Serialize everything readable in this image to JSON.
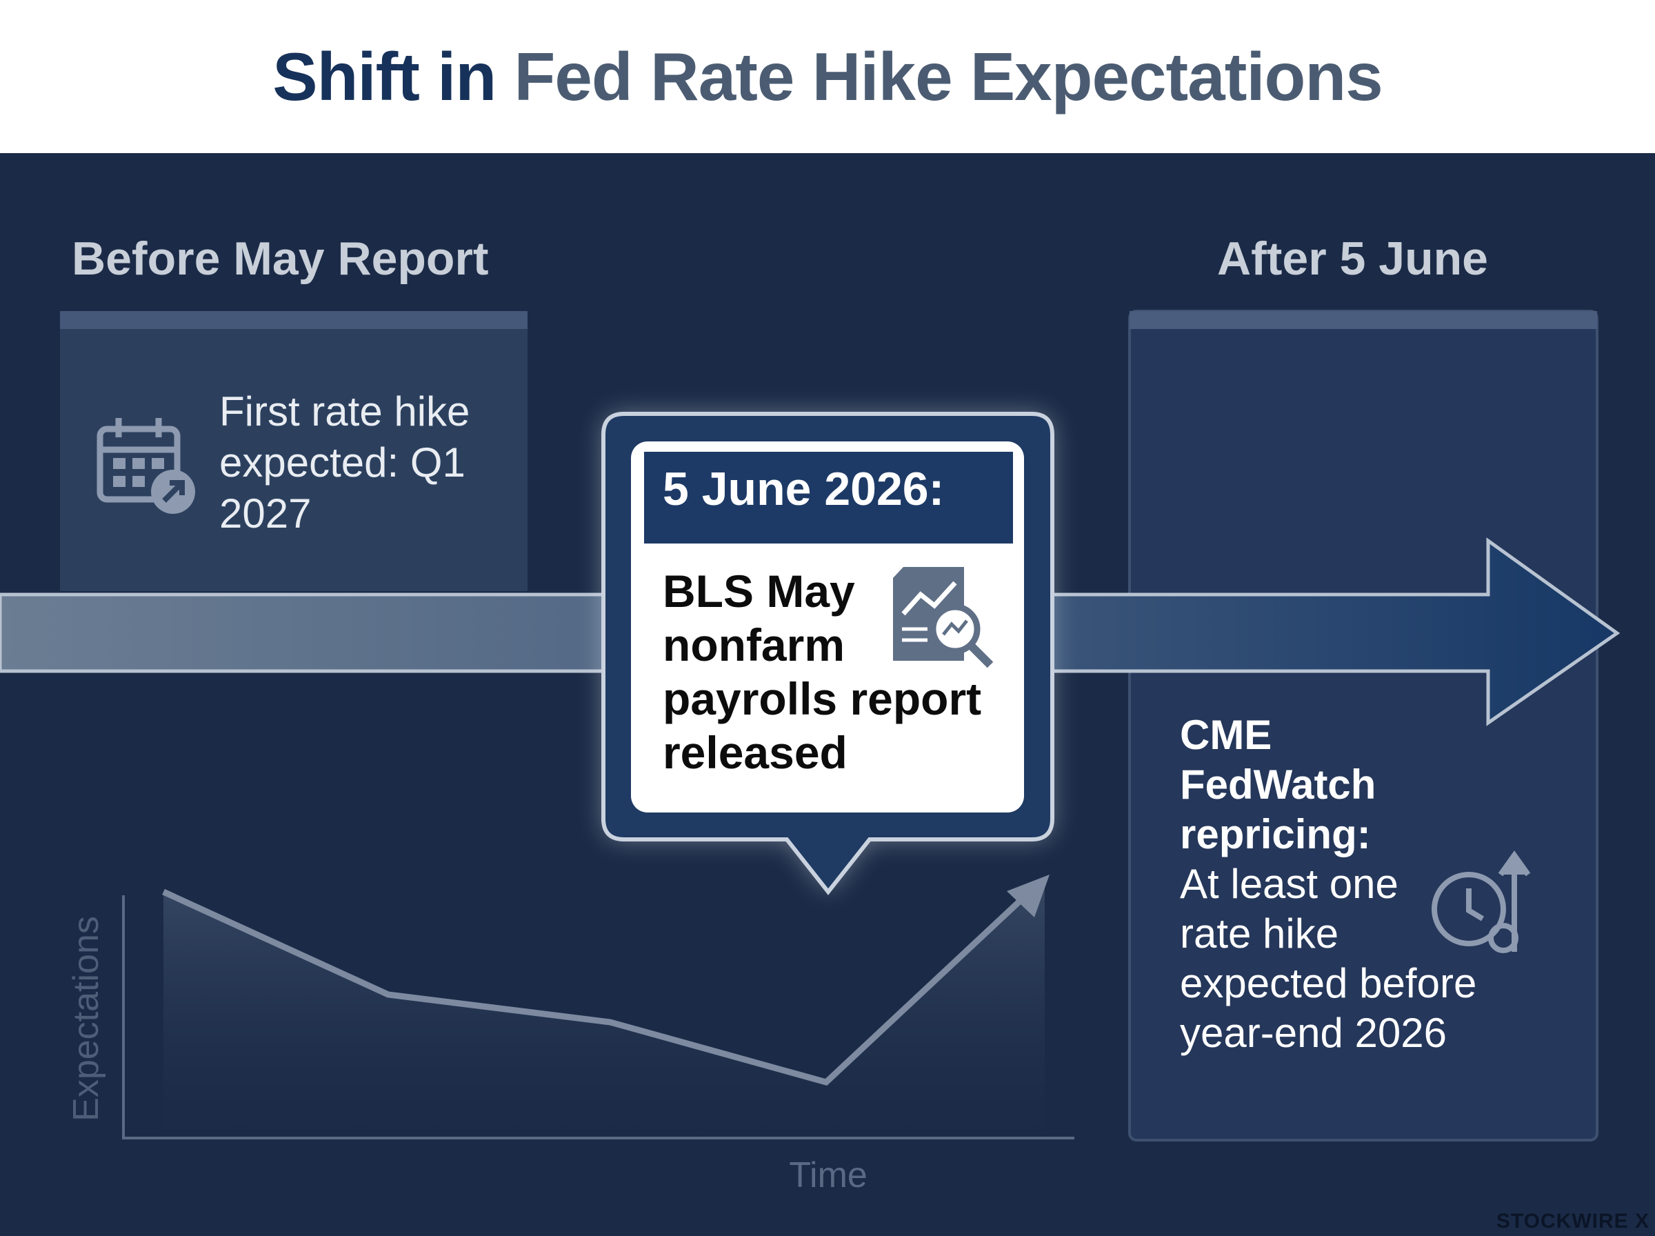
{
  "header": {
    "title_lead": "Shift in",
    "title_rest": "Fed Rate Hike Expectations"
  },
  "before": {
    "heading": "Before May Report",
    "text": "First rate hike expected: Q1 2027"
  },
  "event": {
    "date": "5 June 2026:",
    "text": "BLS May nonfarm payrolls report released"
  },
  "after": {
    "heading": "After 5 June",
    "text_bold": "CME FedWatch repricing:",
    "text": "At least one rate hike expected before year-end 2026"
  },
  "sketch": {
    "y_label": "Expectations",
    "x_label": "Time"
  },
  "brand": "STOCKWIRE X"
}
